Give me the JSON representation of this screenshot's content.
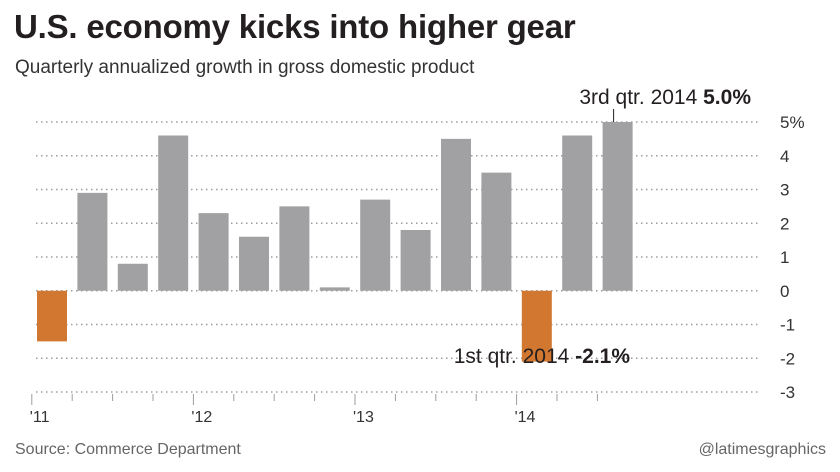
{
  "header": {
    "title": "U.S. economy kicks into higher gear",
    "subtitle": "Quarterly annualized growth in gross domestic product"
  },
  "footer": {
    "source": "Source: Commerce Department",
    "credit": "@latimesgraphics"
  },
  "colors": {
    "positive": "#a1a1a4",
    "negative": "#d2772f",
    "grid": "#9d9d9d",
    "text": "#231f20"
  },
  "chart_data": {
    "type": "bar",
    "title": "U.S. economy kicks into higher gear",
    "subtitle": "Quarterly annualized growth in gross domestic product",
    "categories": [
      "Q1 2011",
      "Q2 2011",
      "Q3 2011",
      "Q4 2011",
      "Q1 2012",
      "Q2 2012",
      "Q3 2012",
      "Q4 2012",
      "Q1 2013",
      "Q2 2013",
      "Q3 2013",
      "Q4 2013",
      "Q1 2014",
      "Q2 2014",
      "Q3 2014"
    ],
    "values": [
      -1.5,
      2.9,
      0.8,
      4.6,
      2.3,
      1.6,
      2.5,
      0.1,
      2.7,
      1.8,
      4.5,
      3.5,
      -2.1,
      4.6,
      5.0
    ],
    "x_tick_labels": [
      "'11",
      "'12",
      "'13",
      "'14"
    ],
    "y_ticks": [
      5,
      4,
      3,
      2,
      1,
      0,
      -1,
      -2,
      -3
    ],
    "y_tick_labels": [
      "5%",
      "4",
      "3",
      "2",
      "1",
      "0",
      "-1",
      "-2",
      "-3"
    ],
    "ylim": [
      -3,
      5
    ],
    "grid": true,
    "annotations": [
      {
        "target": "Q3 2014",
        "label": "3rd qtr. 2014 ",
        "value_label": "5.0%"
      },
      {
        "target": "Q1 2014",
        "label": "1st qtr. 2014 ",
        "value_label": "-2.1%"
      }
    ]
  }
}
